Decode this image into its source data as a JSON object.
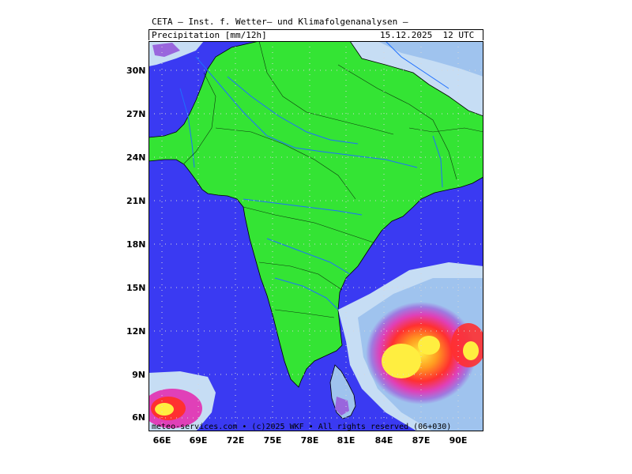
{
  "header": {
    "title": "CETA — Inst. f. Wetter— und Klimafolgenanalysen —",
    "parameter": "Precipitation [mm/12h]",
    "valid_time": "15.12.2025  12 UTC"
  },
  "footer": {
    "credit": "meteo-services.com • (c)2025 WKF • All rights reserved (06+030)"
  },
  "axes": {
    "lat_labels": [
      "30N",
      "27N",
      "24N",
      "21N",
      "18N",
      "15N",
      "12N",
      "9N",
      "6N"
    ],
    "lon_labels": [
      "66E",
      "69E",
      "72E",
      "75E",
      "78E",
      "81E",
      "84E",
      "87E",
      "90E"
    ]
  },
  "colors": {
    "sea": "#3a3af2",
    "land": "#34e434",
    "precip_light": "#c6ddf4",
    "precip_mid": "#9fc3ee",
    "precip_violet": "#9966dd",
    "precip_magenta": "#e040b8",
    "precip_red": "#ff3030",
    "precip_orange": "#ff8a20",
    "precip_yellow": "#ffee40",
    "river": "#1e6fff",
    "border": "#000000",
    "grid": "#c8c8c8"
  }
}
